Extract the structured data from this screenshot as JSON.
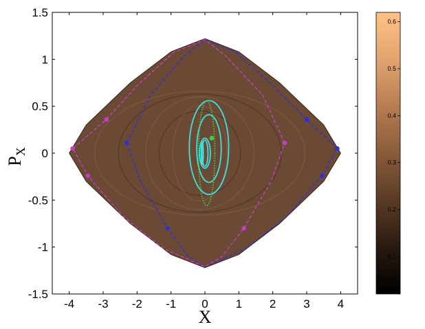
{
  "chart_data": {
    "type": "scatter",
    "title": "",
    "xlabel": "X",
    "ylabel": "P",
    "ylabel_subscript": "X",
    "xlim": [
      -4.5,
      4.5
    ],
    "ylim": [
      -1.5,
      1.5
    ],
    "xticks": [
      -4,
      -3,
      -2,
      -1,
      0,
      1,
      2,
      3,
      4
    ],
    "xtick_labels": [
      "-4",
      "-3",
      "-2",
      "-1",
      "0",
      "1",
      "2",
      "3",
      "4"
    ],
    "yticks": [
      1.5,
      1,
      0.5,
      0,
      -0.5,
      -1,
      -1.5
    ],
    "ytick_labels": [
      "1.5",
      "1",
      "0.5",
      "0",
      "-0.5",
      "-1",
      "-1.5"
    ],
    "grid": false,
    "background": "#6b4a35",
    "boundary": [
      [
        -4.0,
        0.0
      ],
      [
        -3.5,
        0.3
      ],
      [
        -2.2,
        0.75
      ],
      [
        -1.0,
        1.08
      ],
      [
        0.0,
        1.22
      ],
      [
        1.0,
        1.08
      ],
      [
        2.2,
        0.75
      ],
      [
        3.5,
        0.3
      ],
      [
        4.0,
        0.0
      ],
      [
        3.5,
        -0.3
      ],
      [
        2.2,
        -0.75
      ],
      [
        1.0,
        -1.08
      ],
      [
        0.0,
        -1.22
      ],
      [
        -1.0,
        -1.08
      ],
      [
        -2.2,
        -0.75
      ],
      [
        -3.5,
        -0.3
      ]
    ],
    "series": [
      {
        "color": "#3030d0",
        "style": "dashed",
        "points": [
          [
            -2.3,
            0.11
          ],
          [
            -1.1,
            -0.8
          ],
          [
            3.0,
            0.36
          ],
          [
            3.9,
            0.05
          ],
          [
            3.45,
            -0.24
          ]
        ],
        "curve": [
          [
            -2.3,
            0.11
          ],
          [
            -1.6,
            0.62
          ],
          [
            -0.6,
            1.04
          ],
          [
            0.0,
            1.21
          ],
          [
            0.9,
            1.08
          ],
          [
            2.0,
            0.72
          ],
          [
            3.0,
            0.36
          ],
          [
            3.9,
            0.05
          ],
          [
            3.45,
            -0.24
          ],
          [
            2.4,
            -0.68
          ],
          [
            1.2,
            -1.02
          ],
          [
            0.0,
            -1.21
          ],
          [
            -0.5,
            -1.1
          ],
          [
            -1.1,
            -0.8
          ],
          [
            -1.9,
            -0.3
          ],
          [
            -2.3,
            0.11
          ]
        ]
      },
      {
        "color": "#c040c0",
        "style": "dashed",
        "points": [
          [
            -2.9,
            0.36
          ],
          [
            -3.9,
            0.05
          ],
          [
            -3.45,
            -0.24
          ],
          [
            2.35,
            0.11
          ],
          [
            1.15,
            -0.8
          ]
        ],
        "curve": [
          [
            2.35,
            0.11
          ],
          [
            1.7,
            0.62
          ],
          [
            0.6,
            1.04
          ],
          [
            0.0,
            1.21
          ],
          [
            -0.9,
            1.08
          ],
          [
            -2.0,
            0.72
          ],
          [
            -2.9,
            0.36
          ],
          [
            -3.9,
            0.05
          ],
          [
            -3.45,
            -0.24
          ],
          [
            -2.4,
            -0.68
          ],
          [
            -1.2,
            -1.02
          ],
          [
            0.0,
            -1.21
          ],
          [
            0.5,
            -1.1
          ],
          [
            1.15,
            -0.8
          ],
          [
            1.95,
            -0.3
          ],
          [
            2.35,
            0.11
          ]
        ]
      },
      {
        "color": "#40e0e0",
        "style": "solid",
        "ellipses": [
          [
            0.12,
            0.06,
            0.58,
            0.5
          ],
          [
            0.12,
            0.05,
            0.36,
            0.36
          ],
          [
            0.0,
            0.0,
            0.16,
            0.16
          ],
          [
            0.0,
            0.0,
            0.09,
            0.14
          ],
          [
            -0.08,
            0.0,
            0.03,
            0.12
          ]
        ]
      },
      {
        "color": "#40d040",
        "style": "dotted",
        "ellipses": [
          [
            0.05,
            0.0,
            0.24,
            0.56
          ]
        ],
        "points": [
          [
            0.2,
            0.16
          ]
        ]
      }
    ]
  },
  "colorbar": {
    "ticks": [
      0.1,
      0.2,
      0.3,
      0.4,
      0.5,
      0.6
    ],
    "tick_labels": [
      "0.1",
      "0.2",
      "0.3",
      "0.4",
      "0.5",
      "0.6"
    ],
    "range": [
      0.02,
      0.62
    ],
    "stops": [
      "#000000",
      "#2a1a10",
      "#5a3b26",
      "#8a5c3b",
      "#b77d52",
      "#e2a470",
      "#ffc285"
    ]
  }
}
